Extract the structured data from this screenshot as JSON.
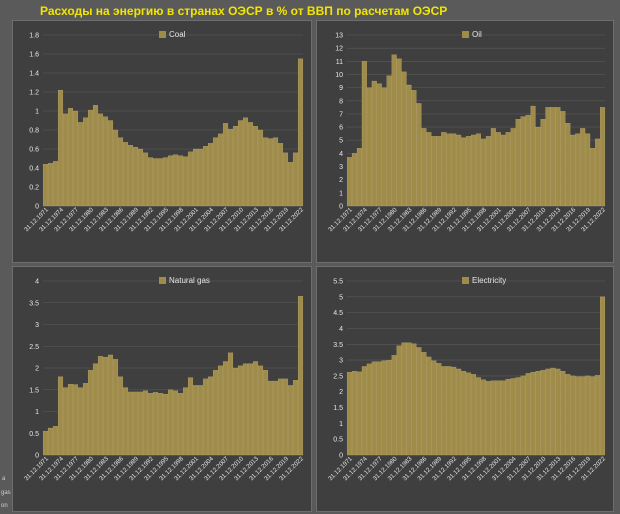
{
  "page": {
    "title": "Расходы на энергию в странах ОЭСР в % от ВВП по расчетам ОЭСР",
    "edge_text": [
      "a",
      "gas",
      "on"
    ]
  },
  "colors": {
    "bar": "#a08c4a",
    "bar_edge": "#c6b47a",
    "panel_bg": "#3f3f3f",
    "grid": "#5a5a5a",
    "text": "#e6e6e6",
    "title": "#f2e600"
  },
  "chart_data": [
    {
      "type": "bar",
      "legend": "Coal",
      "legend_position": "top-center",
      "grid": true,
      "ylim": [
        0,
        1.8
      ],
      "yticks": [
        "0",
        "0.2",
        "0.4",
        "0.6",
        "0.8",
        "1",
        "1.2",
        "1.4",
        "1.6",
        "1.8"
      ],
      "xtick_labels": [
        "31.12.1971",
        "31.12.1974",
        "31.12.1977",
        "31.12.1980",
        "31.12.1983",
        "31.12.1986",
        "31.12.1989",
        "31.12.1992",
        "31.12.1995",
        "31.12.1998",
        "31.12.2001",
        "31.12.2004",
        "31.12.2007",
        "31.12.2010",
        "31.12.2013",
        "31.12.2016",
        "31.12.2019",
        "31.12.2022"
      ],
      "x": [
        1971,
        1972,
        1973,
        1974,
        1975,
        1976,
        1977,
        1978,
        1979,
        1980,
        1981,
        1982,
        1983,
        1984,
        1985,
        1986,
        1987,
        1988,
        1989,
        1990,
        1991,
        1992,
        1993,
        1994,
        1995,
        1996,
        1997,
        1998,
        1999,
        2000,
        2001,
        2002,
        2003,
        2004,
        2005,
        2006,
        2007,
        2008,
        2009,
        2010,
        2011,
        2012,
        2013,
        2014,
        2015,
        2016,
        2017,
        2018,
        2019,
        2020,
        2021,
        2022
      ],
      "values": [
        0.44,
        0.45,
        0.47,
        1.22,
        0.97,
        1.03,
        1.0,
        0.88,
        0.93,
        1.01,
        1.06,
        0.97,
        0.94,
        0.9,
        0.8,
        0.72,
        0.67,
        0.64,
        0.62,
        0.6,
        0.56,
        0.51,
        0.5,
        0.5,
        0.51,
        0.53,
        0.54,
        0.53,
        0.52,
        0.57,
        0.6,
        0.6,
        0.63,
        0.66,
        0.72,
        0.76,
        0.87,
        0.81,
        0.84,
        0.9,
        0.93,
        0.88,
        0.84,
        0.8,
        0.72,
        0.71,
        0.72,
        0.66,
        0.56,
        0.46,
        0.56,
        1.55
      ]
    },
    {
      "type": "bar",
      "legend": "Oil",
      "legend_position": "top-center",
      "grid": true,
      "ylim": [
        0,
        13
      ],
      "yticks": [
        "0",
        "1",
        "2",
        "3",
        "4",
        "5",
        "6",
        "7",
        "8",
        "9",
        "10",
        "11",
        "12",
        "13"
      ],
      "xtick_labels": [
        "31.12.1971",
        "31.12.1974",
        "31.12.1977",
        "31.12.1980",
        "31.12.1983",
        "31.12.1986",
        "31.12.1989",
        "31.12.1992",
        "31.12.1995",
        "31.12.1998",
        "31.12.2001",
        "31.12.2004",
        "31.12.2007",
        "31.12.2010",
        "31.12.2013",
        "31.12.2016",
        "31.12.2019",
        "31.12.2022"
      ],
      "x": [
        1971,
        1972,
        1973,
        1974,
        1975,
        1976,
        1977,
        1978,
        1979,
        1980,
        1981,
        1982,
        1983,
        1984,
        1985,
        1986,
        1987,
        1988,
        1989,
        1990,
        1991,
        1992,
        1993,
        1994,
        1995,
        1996,
        1997,
        1998,
        1999,
        2000,
        2001,
        2002,
        2003,
        2004,
        2005,
        2006,
        2007,
        2008,
        2009,
        2010,
        2011,
        2012,
        2013,
        2014,
        2015,
        2016,
        2017,
        2018,
        2019,
        2020,
        2021,
        2022
      ],
      "values": [
        3.7,
        4.0,
        4.4,
        11.0,
        9.0,
        9.5,
        9.3,
        9.0,
        9.9,
        11.5,
        11.2,
        10.2,
        9.2,
        8.8,
        7.8,
        5.9,
        5.6,
        5.3,
        5.3,
        5.6,
        5.5,
        5.5,
        5.4,
        5.2,
        5.3,
        5.4,
        5.5,
        5.1,
        5.3,
        5.9,
        5.6,
        5.4,
        5.6,
        5.9,
        6.6,
        6.8,
        6.9,
        7.6,
        6.0,
        6.6,
        7.5,
        7.5,
        7.5,
        7.2,
        6.3,
        5.4,
        5.5,
        5.9,
        5.5,
        4.4,
        5.1,
        7.5
      ]
    },
    {
      "type": "bar",
      "legend": "Natural gas",
      "legend_position": "top-center",
      "grid": true,
      "ylim": [
        0,
        4
      ],
      "yticks": [
        "0",
        "0.5",
        "1",
        "1.5",
        "2",
        "2.5",
        "3",
        "3.5",
        "4"
      ],
      "xtick_labels": [
        "31.12.1971",
        "31.12.1974",
        "31.12.1977",
        "31.12.1980",
        "31.12.1983",
        "31.12.1986",
        "31.12.1989",
        "31.12.1992",
        "31.12.1995",
        "31.12.1998",
        "31.12.2001",
        "31.12.2004",
        "31.12.2007",
        "31.12.2010",
        "31.12.2013",
        "31.12.2016",
        "31.12.2019",
        "31.12.2022"
      ],
      "x": [
        1971,
        1972,
        1973,
        1974,
        1975,
        1976,
        1977,
        1978,
        1979,
        1980,
        1981,
        1982,
        1983,
        1984,
        1985,
        1986,
        1987,
        1988,
        1989,
        1990,
        1991,
        1992,
        1993,
        1994,
        1995,
        1996,
        1997,
        1998,
        1999,
        2000,
        2001,
        2002,
        2003,
        2004,
        2005,
        2006,
        2007,
        2008,
        2009,
        2010,
        2011,
        2012,
        2013,
        2014,
        2015,
        2016,
        2017,
        2018,
        2019,
        2020,
        2021,
        2022
      ],
      "values": [
        0.55,
        0.62,
        0.66,
        1.8,
        1.55,
        1.63,
        1.62,
        1.55,
        1.65,
        1.95,
        2.1,
        2.27,
        2.25,
        2.3,
        2.2,
        1.8,
        1.55,
        1.45,
        1.45,
        1.45,
        1.48,
        1.42,
        1.44,
        1.42,
        1.4,
        1.5,
        1.48,
        1.42,
        1.55,
        1.78,
        1.6,
        1.6,
        1.75,
        1.8,
        1.95,
        2.05,
        2.15,
        2.35,
        2.0,
        2.05,
        2.1,
        2.1,
        2.15,
        2.05,
        1.95,
        1.7,
        1.7,
        1.75,
        1.75,
        1.6,
        1.72,
        3.65
      ]
    },
    {
      "type": "bar",
      "legend": "Electricity",
      "legend_position": "top-center",
      "grid": true,
      "ylim": [
        0,
        5.5
      ],
      "yticks": [
        "0",
        "0.5",
        "1",
        "1.5",
        "2",
        "2.5",
        "3",
        "3.5",
        "4",
        "4.5",
        "5",
        "5.5"
      ],
      "xtick_labels": [
        "31.12.1971",
        "31.12.1974",
        "31.12.1977",
        "31.12.1980",
        "31.12.1983",
        "31.12.1986",
        "31.12.1989",
        "31.12.1992",
        "31.12.1995",
        "31.12.1998",
        "31.12.2001",
        "31.12.2004",
        "31.12.2007",
        "31.12.2010",
        "31.12.2013",
        "31.12.2016",
        "31.12.2019",
        "31.12.2022"
      ],
      "x": [
        1971,
        1972,
        1973,
        1974,
        1975,
        1976,
        1977,
        1978,
        1979,
        1980,
        1981,
        1982,
        1983,
        1984,
        1985,
        1986,
        1987,
        1988,
        1989,
        1990,
        1991,
        1992,
        1993,
        1994,
        1995,
        1996,
        1997,
        1998,
        1999,
        2000,
        2001,
        2002,
        2003,
        2004,
        2005,
        2006,
        2007,
        2008,
        2009,
        2010,
        2011,
        2012,
        2013,
        2014,
        2015,
        2016,
        2017,
        2018,
        2019,
        2020,
        2021,
        2022
      ],
      "values": [
        2.62,
        2.65,
        2.63,
        2.8,
        2.88,
        2.95,
        2.95,
        2.98,
        3.0,
        3.15,
        3.45,
        3.55,
        3.55,
        3.52,
        3.4,
        3.25,
        3.1,
        2.98,
        2.9,
        2.8,
        2.8,
        2.78,
        2.72,
        2.65,
        2.6,
        2.55,
        2.45,
        2.38,
        2.33,
        2.35,
        2.35,
        2.35,
        2.4,
        2.42,
        2.45,
        2.5,
        2.58,
        2.62,
        2.65,
        2.68,
        2.72,
        2.75,
        2.72,
        2.65,
        2.55,
        2.5,
        2.48,
        2.48,
        2.5,
        2.48,
        2.52,
        5.0
      ]
    }
  ]
}
